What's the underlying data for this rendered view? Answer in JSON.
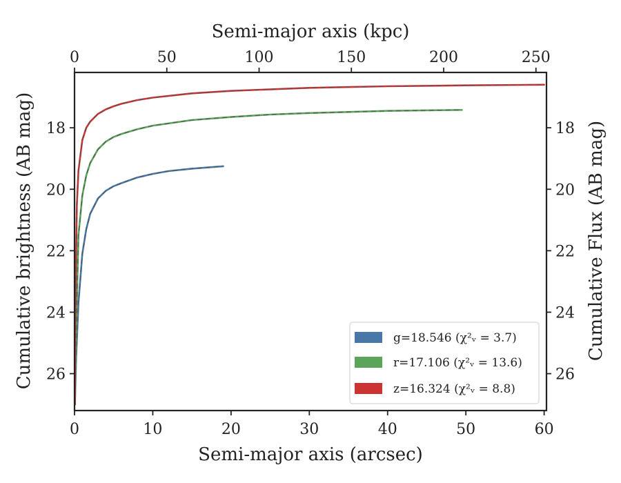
{
  "chart_data": {
    "type": "line",
    "xlabel": "Semi-major axis (arcsec)",
    "x2label": "Semi-major axis (kpc)",
    "ylabel": "Cumulative brightness (AB mag)",
    "y2label": "Cumulative Flux (AB mag)",
    "xlim": [
      0,
      60.3
    ],
    "x2lim": [
      0,
      255.7
    ],
    "ylim": [
      27.2,
      16.2
    ],
    "y_inverted": true,
    "xticks": [
      0,
      10,
      20,
      30,
      40,
      50,
      60
    ],
    "x2ticks": [
      0,
      50,
      100,
      150,
      200,
      250
    ],
    "yticks": [
      18,
      20,
      22,
      24,
      26
    ],
    "grid": false,
    "legend_position": "lower-right",
    "series": [
      {
        "name": "g",
        "legend_label": "g=18.546 (χ²ᵥ = 3.7)",
        "color": "#4878a8",
        "x": [
          0.05,
          0.2,
          0.5,
          1,
          1.5,
          2,
          3,
          4,
          5,
          6,
          8,
          10,
          12,
          15,
          19
        ],
        "y": [
          27.0,
          25.5,
          23.7,
          22.1,
          21.3,
          20.8,
          20.3,
          20.05,
          19.9,
          19.8,
          19.62,
          19.5,
          19.41,
          19.33,
          19.25
        ]
      },
      {
        "name": "r",
        "legend_label": "r=17.106 (χ²ᵥ = 13.6)",
        "color": "#5aa55a",
        "x": [
          0.05,
          0.15,
          0.5,
          1,
          1.5,
          2,
          3,
          4,
          5,
          6,
          8,
          10,
          15,
          20,
          25,
          30,
          40,
          49.5
        ],
        "y": [
          27.0,
          25.3,
          21.5,
          20.2,
          19.55,
          19.15,
          18.7,
          18.45,
          18.3,
          18.2,
          18.05,
          17.93,
          17.75,
          17.65,
          17.57,
          17.52,
          17.45,
          17.42
        ]
      },
      {
        "name": "z",
        "legend_label": "z=16.324 (χ²ᵥ = 8.8)",
        "color": "#cc3333",
        "x": [
          0.05,
          0.1,
          0.3,
          0.5,
          1,
          1.5,
          2,
          3,
          4,
          5,
          6,
          8,
          10,
          15,
          20,
          30,
          40,
          50,
          60
        ],
        "y": [
          27.0,
          24.0,
          20.5,
          19.4,
          18.4,
          18.0,
          17.8,
          17.55,
          17.4,
          17.3,
          17.22,
          17.1,
          17.02,
          16.88,
          16.8,
          16.7,
          16.65,
          16.62,
          16.6
        ]
      }
    ]
  }
}
